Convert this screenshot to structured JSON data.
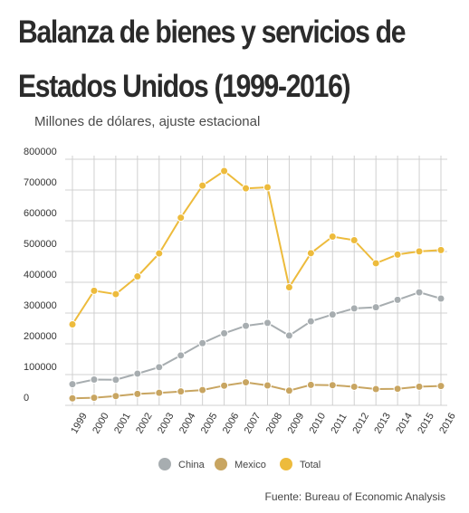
{
  "title_line1": "Balanza de bienes y servicios de",
  "title_line2": "Estados Unidos (1999-2016)",
  "subtitle": "Millones de dólares, ajuste estacional",
  "source": "Fuente: Bureau of Economic Analysis",
  "colors": {
    "China": "#a7adb0",
    "Mexico": "#c8a561",
    "Total": "#edbb3c",
    "grid": "#d0d0d0"
  },
  "chart_data": {
    "type": "line",
    "x": [
      "1999",
      "2000",
      "2001",
      "2002",
      "2003",
      "2004",
      "2005",
      "2006",
      "2007",
      "2008",
      "2009",
      "2010",
      "2011",
      "2012",
      "2013",
      "2014",
      "2015",
      "2016"
    ],
    "ylim": [
      0,
      800000
    ],
    "yticks": [
      0,
      100000,
      200000,
      300000,
      400000,
      500000,
      600000,
      700000,
      800000
    ],
    "ytick_labels": [
      "0",
      "100000",
      "200000",
      "300000",
      "400000",
      "500000",
      "600000",
      "700000",
      "800000"
    ],
    "grid": true,
    "legend": "bottom-center",
    "series": [
      {
        "name": "China",
        "values": [
          68677,
          83833,
          83096,
          103065,
          124068,
          162254,
          202278,
          234101,
          258506,
          268040,
          226877,
          273042,
          295250,
          315102,
          318684,
          343074,
          367328,
          347037
        ]
      },
      {
        "name": "Mexico",
        "values": [
          22812,
          24577,
          30041,
          37146,
          40648,
          45068,
          49751,
          64066,
          74796,
          64722,
          47820,
          66363,
          65560,
          60416,
          52828,
          53824,
          60662,
          62971
        ]
      },
      {
        "name": "Total",
        "values": [
          263160,
          372517,
          361511,
          418955,
          493890,
          609883,
          714245,
          761716,
          705375,
          708726,
          383774,
          494658,
          548625,
          536773,
          461876,
          490176,
          500361,
          504793
        ]
      }
    ]
  }
}
